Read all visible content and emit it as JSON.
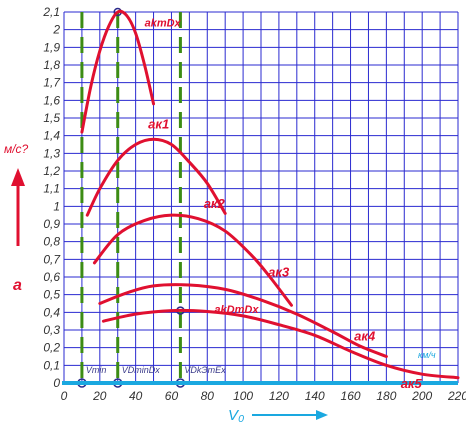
{
  "chart_data": {
    "type": "line",
    "xlabel": "V₀",
    "xunit": "км/ч",
    "ylabel": "a",
    "yunit": "м/с?",
    "xlim": [
      0,
      220
    ],
    "ylim": [
      0,
      2.1
    ],
    "x_ticks": [
      0,
      20,
      40,
      60,
      80,
      100,
      120,
      140,
      160,
      180,
      200,
      220
    ],
    "y_ticks": [
      "0",
      "0,1",
      "0,2",
      "0,3",
      "0,4",
      "0,5",
      "0,6",
      "0,7",
      "0,8",
      "0,9",
      "1",
      "1,1",
      "1,2",
      "1,3",
      "1,4",
      "1,5",
      "1,6",
      "1,7",
      "1,8",
      "1,9",
      "2",
      "2,1"
    ],
    "grid": true,
    "series": [
      {
        "name": "aк1",
        "points": [
          [
            10,
            1.42
          ],
          [
            15,
            1.68
          ],
          [
            20,
            1.88
          ],
          [
            25,
            2.02
          ],
          [
            30,
            2.1
          ],
          [
            35,
            2.08
          ],
          [
            40,
            1.98
          ],
          [
            45,
            1.8
          ],
          [
            50,
            1.58
          ]
        ]
      },
      {
        "name": "aк2",
        "points": [
          [
            13,
            0.95
          ],
          [
            20,
            1.1
          ],
          [
            30,
            1.26
          ],
          [
            40,
            1.35
          ],
          [
            50,
            1.38
          ],
          [
            60,
            1.35
          ],
          [
            70,
            1.25
          ],
          [
            80,
            1.13
          ],
          [
            90,
            0.96
          ]
        ]
      },
      {
        "name": "aк3",
        "points": [
          [
            17,
            0.68
          ],
          [
            30,
            0.84
          ],
          [
            45,
            0.92
          ],
          [
            60,
            0.95
          ],
          [
            75,
            0.93
          ],
          [
            90,
            0.86
          ],
          [
            105,
            0.72
          ],
          [
            115,
            0.6
          ],
          [
            127,
            0.44
          ]
        ]
      },
      {
        "name": "aк4",
        "points": [
          [
            20,
            0.45
          ],
          [
            35,
            0.51
          ],
          [
            50,
            0.55
          ],
          [
            70,
            0.555
          ],
          [
            90,
            0.53
          ],
          [
            110,
            0.47
          ],
          [
            130,
            0.39
          ],
          [
            150,
            0.29
          ],
          [
            165,
            0.21
          ],
          [
            180,
            0.15
          ]
        ]
      },
      {
        "name": "aк5",
        "points": [
          [
            22,
            0.35
          ],
          [
            40,
            0.39
          ],
          [
            60,
            0.41
          ],
          [
            80,
            0.405
          ],
          [
            100,
            0.38
          ],
          [
            120,
            0.33
          ],
          [
            140,
            0.27
          ],
          [
            160,
            0.18
          ],
          [
            180,
            0.1
          ],
          [
            200,
            0.05
          ],
          [
            220,
            0.03
          ]
        ]
      }
    ],
    "vertical_markers": [
      {
        "label": "Vmin",
        "x": 10
      },
      {
        "label": "VDminDx",
        "x": 30
      },
      {
        "label": "VDkЭmEx",
        "x": 65
      }
    ],
    "annotations": [
      {
        "text": "akmDx",
        "x": 45,
        "y": 2.04
      },
      {
        "text": "akDmDx",
        "x": 84,
        "y": 0.42
      }
    ]
  }
}
